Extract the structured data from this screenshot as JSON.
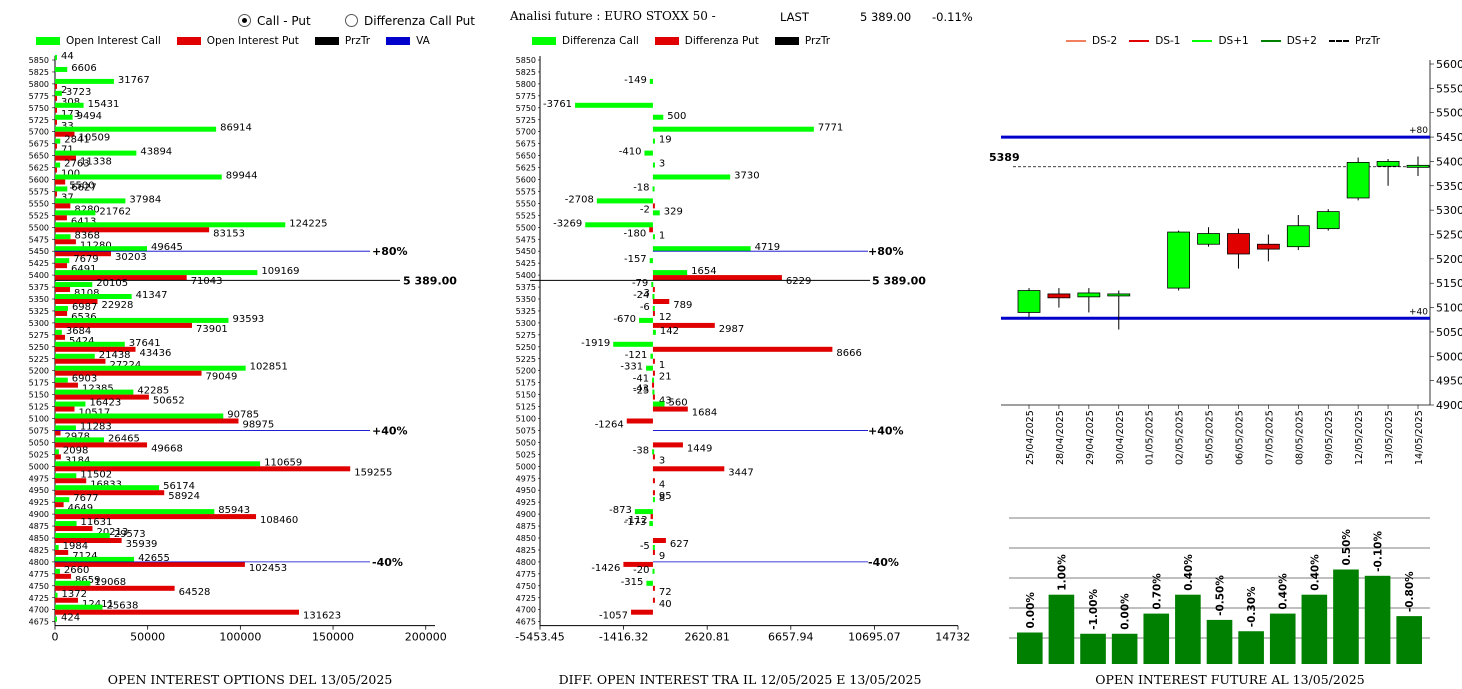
{
  "controls": {
    "radio_call_put": "Call - Put",
    "radio_diff": "Differenza Call Put",
    "selected": "call_put"
  },
  "header": {
    "title": "Analisi future : EURO STOXX 50 -",
    "last_label": "LAST",
    "last_value": "5 389.00",
    "change": "-0.11%"
  },
  "colors": {
    "green": "#00ff00",
    "red": "#e00000",
    "blue": "#0000cc",
    "dark_green": "#008000"
  },
  "chart_data": [
    {
      "type": "bar",
      "orientation": "horizontal",
      "caption": "OPEN INTEREST OPTIONS DEL 13/05/2025",
      "legend": [
        "Open Interest Call",
        "Open Interest Put",
        "PrzTr",
        "VA"
      ],
      "strikes": [
        5850,
        5825,
        5800,
        5775,
        5750,
        5725,
        5700,
        5675,
        5650,
        5625,
        5600,
        5575,
        5550,
        5525,
        5500,
        5475,
        5450,
        5425,
        5400,
        5375,
        5350,
        5325,
        5300,
        5275,
        5250,
        5225,
        5200,
        5175,
        5150,
        5125,
        5100,
        5075,
        5050,
        5025,
        5000,
        4975,
        4950,
        4925,
        4900,
        4875,
        4850,
        4825,
        4800,
        4775,
        4750,
        4725,
        4700,
        4675
      ],
      "call": [
        44,
        6606,
        31767,
        3723,
        15431,
        9494,
        86914,
        2841,
        43894,
        2763,
        89944,
        6627,
        37984,
        21762,
        124225,
        8368,
        49645,
        7679,
        109169,
        20105,
        41347,
        6987,
        93593,
        3684,
        37641,
        21438,
        102851,
        6903,
        42285,
        16423,
        90785,
        11283,
        26465,
        2098,
        110659,
        11502,
        56174,
        7677,
        85943,
        11631,
        29573,
        1984,
        42655,
        2660,
        19068,
        1372,
        25638,
        424
      ],
      "put": [
        null,
        null,
        2,
        308,
        173,
        33,
        10509,
        71,
        11338,
        100,
        5500,
        37,
        8280,
        6413,
        83153,
        11280,
        30203,
        6491,
        71043,
        8108,
        22928,
        6536,
        73901,
        5424,
        43436,
        27224,
        79049,
        12385,
        50652,
        10517,
        98975,
        2978,
        49668,
        3184,
        159255,
        16833,
        58924,
        4649,
        108460,
        20213,
        35939,
        7124,
        102453,
        8659,
        64528,
        12411,
        131623,
        null
      ],
      "xticks": [
        0,
        50000,
        100000,
        150000,
        200000
      ],
      "xlim": [
        0,
        205000
      ],
      "ref_lines": [
        {
          "strike": 5450,
          "label": "+80%"
        },
        {
          "strike": 5389,
          "label": "5 389.00"
        },
        {
          "strike": 5075,
          "label": "+40%"
        },
        {
          "strike": 4800,
          "label": "-40%"
        }
      ]
    },
    {
      "type": "bar",
      "orientation": "horizontal",
      "caption": "DIFF. OPEN INTEREST TRA IL 12/05/2025 E 13/05/2025",
      "legend": [
        "Differenza Call",
        "Differenza Put",
        "PrzTr"
      ],
      "strikes": [
        5850,
        5825,
        5800,
        5775,
        5750,
        5725,
        5700,
        5675,
        5650,
        5625,
        5600,
        5575,
        5550,
        5525,
        5500,
        5475,
        5450,
        5425,
        5400,
        5375,
        5350,
        5325,
        5300,
        5275,
        5250,
        5225,
        5200,
        5175,
        5150,
        5125,
        5100,
        5075,
        5050,
        5025,
        5000,
        4975,
        4950,
        4925,
        4900,
        4875,
        4850,
        4825,
        4800,
        4775,
        4750,
        4725,
        4700,
        4675
      ],
      "diff_call": [
        null,
        null,
        -149,
        null,
        -3761,
        500,
        7771,
        19,
        -410,
        3,
        3730,
        -18,
        -2708,
        329,
        -3269,
        1,
        4719,
        -157,
        1654,
        -79,
        -24,
        -6,
        -670,
        142,
        -1919,
        -121,
        -331,
        -41,
        -25,
        560,
        null,
        null,
        null,
        -38,
        null,
        null,
        null,
        8,
        -873,
        -173,
        null,
        -5,
        null,
        -20,
        -315,
        null,
        null,
        null
      ],
      "diff_put": [
        null,
        null,
        null,
        null,
        null,
        null,
        null,
        null,
        null,
        null,
        null,
        null,
        -2,
        null,
        -180,
        null,
        null,
        null,
        6229,
        -3,
        789,
        12,
        2987,
        null,
        8666,
        1,
        21,
        -43,
        43,
        1684,
        -1264,
        null,
        1449,
        3,
        3447,
        4,
        95,
        null,
        -112,
        null,
        627,
        9,
        -1426,
        null,
        72,
        40,
        -1057,
        null
      ],
      "xticks": [
        "-5453.45",
        "-1416.32",
        "2620.81",
        "6657.94",
        "10695.07",
        "14732.2"
      ],
      "xlim": [
        -5453.45,
        14732.2
      ],
      "ref_lines": [
        {
          "strike": 5450,
          "label": "+80%"
        },
        {
          "strike": 5389,
          "label": "5 389.00"
        },
        {
          "strike": 5075,
          "label": "+40%"
        },
        {
          "strike": 4800,
          "label": "-40%"
        }
      ]
    },
    {
      "type": "candlestick",
      "caption": "OPEN INTEREST FUTURE AL 13/05/2025",
      "legend": [
        "DS-2",
        "DS-1",
        "DS+1",
        "DS+2",
        "PrzTr"
      ],
      "dates": [
        "25/04/2025",
        "28/04/2025",
        "29/04/2025",
        "30/04/2025",
        "01/05/2025",
        "02/05/2025",
        "05/05/2025",
        "06/05/2025",
        "07/05/2025",
        "08/05/2025",
        "09/05/2025",
        "12/05/2025",
        "13/05/2025",
        "14/05/2025"
      ],
      "candles": [
        {
          "open": 5090,
          "close": 5135,
          "high": 5140,
          "low": 5080
        },
        {
          "open": 5128,
          "close": 5120,
          "high": 5140,
          "low": 5100
        },
        {
          "open": 5122,
          "close": 5130,
          "high": 5140,
          "low": 5090
        },
        {
          "open": 5125,
          "close": 5128,
          "high": 5135,
          "low": 5055
        },
        null,
        {
          "open": 5140,
          "close": 5255,
          "high": 5258,
          "low": 5135
        },
        {
          "open": 5230,
          "close": 5252,
          "high": 5265,
          "low": 5225
        },
        {
          "open": 5252,
          "close": 5210,
          "high": 5262,
          "low": 5180
        },
        {
          "open": 5230,
          "close": 5220,
          "high": 5250,
          "low": 5195
        },
        {
          "open": 5225,
          "close": 5268,
          "high": 5290,
          "low": 5218
        },
        {
          "open": 5262,
          "close": 5297,
          "high": 5302,
          "low": 5258
        },
        {
          "open": 5325,
          "close": 5398,
          "high": 5408,
          "low": 5320
        },
        {
          "open": 5390,
          "close": 5400,
          "high": 5405,
          "low": 5350
        },
        {
          "open": 5388,
          "close": 5392,
          "high": 5410,
          "low": 5370
        }
      ],
      "yticks": [
        4900,
        4950,
        5000,
        5050,
        5100,
        5150,
        5200,
        5250,
        5300,
        5350,
        5400,
        5450,
        5500,
        5550,
        5600
      ],
      "ylim": [
        4900,
        5600
      ],
      "hlines": [
        {
          "value": 5450,
          "label": "+80",
          "color": "#0000cc"
        },
        {
          "value": 5078,
          "label": "+40",
          "color": "#0000cc"
        }
      ],
      "przTr": {
        "value": 5389,
        "label": "5389"
      },
      "oi_pct": {
        "labels": [
          "0.00%",
          "1.00%",
          "-1.00%",
          "0.00%",
          "0.70%",
          "0.40%",
          "-0.50%",
          "-0.30%",
          "0.40%",
          "0.40%",
          "0.50%",
          "-0.10%",
          "-0.80%"
        ],
        "levels": [
          0.25,
          0.55,
          0.24,
          0.24,
          0.4,
          0.55,
          0.35,
          0.26,
          0.4,
          0.55,
          0.75,
          0.7,
          0.38
        ]
      }
    }
  ]
}
